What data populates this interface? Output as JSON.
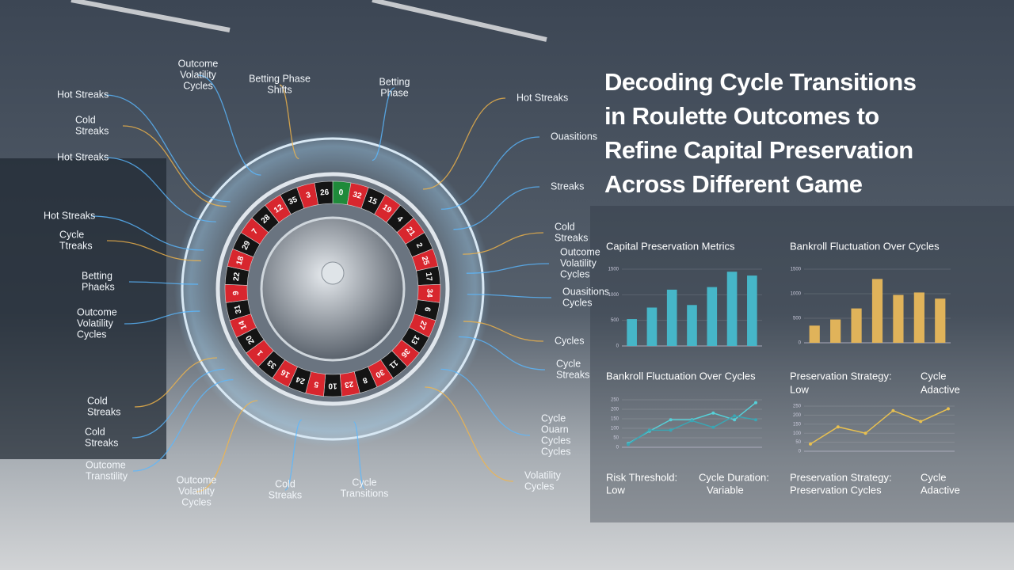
{
  "title": [
    "Decoding Cycle Transitions",
    "in Roulette Outcomes to",
    "Refine Capital Preservation",
    "Across Different Game"
  ],
  "labels": [
    {
      "lines": [
        "Hot Streaks"
      ]
    },
    {
      "lines": [
        "Cold",
        "Streaks"
      ]
    },
    {
      "lines": [
        "Hot Streaks"
      ]
    },
    {
      "lines": [
        "Outcome",
        "Volatility",
        "Cycles"
      ]
    },
    {
      "lines": [
        "Betting Phase",
        "Shifts"
      ]
    },
    {
      "lines": [
        "Betting",
        "Phase"
      ]
    },
    {
      "lines": [
        "Hot Streaks"
      ]
    },
    {
      "lines": [
        "Cycle",
        "Ttreaks"
      ]
    },
    {
      "lines": [
        "Betting",
        "Phaeks"
      ]
    },
    {
      "lines": [
        "Outcome",
        "Volatility",
        "Cycles"
      ]
    },
    {
      "lines": [
        "Cold",
        "Streaks"
      ]
    },
    {
      "lines": [
        "Cold",
        "Streaks"
      ]
    },
    {
      "lines": [
        "Outcome",
        "Transtility"
      ]
    },
    {
      "lines": [
        "Outcome",
        "Volatility",
        "Cycles"
      ]
    },
    {
      "lines": [
        "Cold",
        "Streaks"
      ]
    },
    {
      "lines": [
        "Cycle",
        "Transitions"
      ]
    },
    {
      "lines": [
        "Hot Streaks"
      ]
    },
    {
      "lines": [
        "Ouasitions"
      ]
    },
    {
      "lines": [
        "Streaks"
      ]
    },
    {
      "lines": [
        "Cold",
        "Streaks"
      ]
    },
    {
      "lines": [
        "Outcome",
        "Volatility",
        "Cycles"
      ]
    },
    {
      "lines": [
        "Ouasitions",
        "Cycles"
      ]
    },
    {
      "lines": [
        "Cycles"
      ]
    },
    {
      "lines": [
        "Cycle",
        "Streaks"
      ]
    },
    {
      "lines": [
        "Cycle",
        "Ouarn",
        "Cycles",
        "Cycles"
      ]
    },
    {
      "lines": [
        "Volatility",
        "Cycles"
      ]
    }
  ],
  "wheel_numbers": [
    "0",
    "32",
    "15",
    "19",
    "4",
    "21",
    "2",
    "25",
    "17",
    "34",
    "6",
    "27",
    "13",
    "36",
    "11",
    "30",
    "8",
    "23",
    "10",
    "5",
    "24",
    "16",
    "33",
    "1",
    "20",
    "14",
    "31",
    "9",
    "22",
    "18",
    "29",
    "7",
    "28",
    "12",
    "35",
    "3",
    "26"
  ],
  "chart_data": [
    {
      "type": "bar",
      "title": "Capital Preservation Metrics",
      "color": "#46b6c8",
      "ylim": [
        0,
        1500
      ],
      "yticks": [
        0,
        500,
        1000,
        1500
      ],
      "values": [
        525,
        750,
        1100,
        800,
        1150,
        1450,
        1375
      ]
    },
    {
      "type": "bar",
      "title": "Bankroll Fluctuation Over Cycles",
      "color": "#e0b35a",
      "ylim": [
        0,
        1500
      ],
      "yticks": [
        0,
        500,
        1000,
        1500
      ],
      "values": [
        350,
        475,
        700,
        1300,
        975,
        1025,
        900
      ]
    },
    {
      "type": "line",
      "title": "Bankroll Fluctuation Over Cycles",
      "ylim": [
        0,
        250
      ],
      "yticks": [
        0,
        50,
        100,
        150,
        200,
        250
      ],
      "series": [
        {
          "color": "#56d0d8",
          "values": [
            20,
            85,
            145,
            145,
            180,
            145,
            235
          ]
        },
        {
          "color": "#3aa6b4",
          "values": [
            15,
            90,
            90,
            140,
            105,
            165,
            145
          ]
        }
      ]
    },
    {
      "type": "line",
      "title": "Preservation Strategy:",
      "annotations": [
        "Low",
        "Cycle",
        "Adactive"
      ],
      "ylim": [
        0,
        250
      ],
      "yticks": [
        0,
        50,
        100,
        150,
        200,
        250
      ],
      "series": [
        {
          "color": "#e8c050",
          "values": [
            40,
            135,
            100,
            225,
            165,
            235
          ]
        }
      ]
    }
  ],
  "footer": [
    {
      "label": "Risk Threshold:",
      "value": "Low"
    },
    {
      "label": "Cycle Duration:",
      "value": "Variable"
    },
    {
      "label": "Preservation Strategy:",
      "value": "Preservation Cycles"
    },
    {
      "label": "Cycle",
      "value": "Adactive"
    }
  ]
}
